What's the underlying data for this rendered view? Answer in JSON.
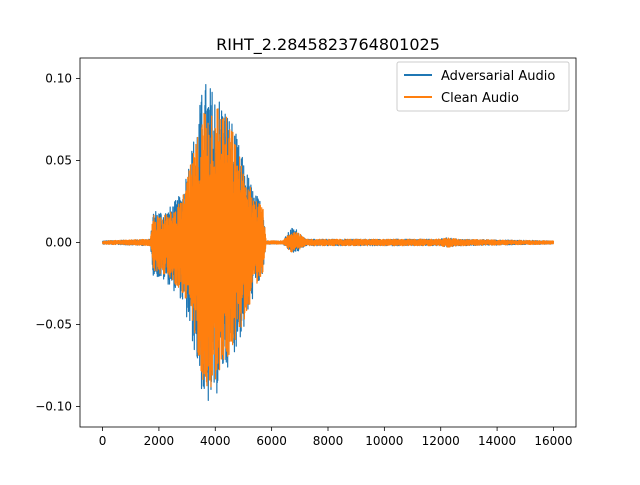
{
  "chart_data": {
    "type": "line",
    "title": "RIHT_2.2845823764801025",
    "xlabel": "",
    "ylabel": "",
    "xlim": [
      -800,
      16800
    ],
    "ylim": [
      -0.1125,
      0.1125
    ],
    "x_ticks": [
      0,
      2000,
      4000,
      6000,
      8000,
      10000,
      12000,
      14000,
      16000
    ],
    "x_tick_labels": [
      "0",
      "2000",
      "4000",
      "6000",
      "8000",
      "10000",
      "12000",
      "14000",
      "16000"
    ],
    "y_ticks": [
      0.1,
      0.05,
      0.0,
      -0.05,
      -0.1
    ],
    "y_tick_labels": [
      "0.10",
      "0.05",
      "0.00",
      "−0.05",
      "−0.10"
    ],
    "grid": false,
    "legend_position": "top-right",
    "series": [
      {
        "name": "Adversarial Audio",
        "color": "#1f77b4",
        "envelope_x": [
          0,
          1700,
          1800,
          2300,
          2800,
          3300,
          3600,
          3900,
          4200,
          4600,
          5000,
          5400,
          5700,
          5800,
          6400,
          6700,
          6900,
          7200,
          8000,
          11900,
          12300,
          12600,
          16000
        ],
        "envelope_max": [
          0.001,
          0.002,
          0.02,
          0.02,
          0.03,
          0.07,
          0.1,
          0.095,
          0.09,
          0.075,
          0.05,
          0.03,
          0.025,
          0.001,
          0.001,
          0.009,
          0.008,
          0.002,
          0.002,
          0.002,
          0.003,
          0.002,
          0.001
        ],
        "envelope_min": [
          -0.001,
          -0.002,
          -0.02,
          -0.025,
          -0.035,
          -0.07,
          -0.1,
          -0.102,
          -0.085,
          -0.07,
          -0.055,
          -0.03,
          -0.02,
          -0.001,
          -0.001,
          -0.006,
          -0.006,
          -0.002,
          -0.002,
          -0.002,
          -0.003,
          -0.002,
          -0.001
        ]
      },
      {
        "name": "Clean Audio",
        "color": "#ff7f0e",
        "envelope_x": [
          0,
          1700,
          1800,
          2300,
          2800,
          3300,
          3600,
          3900,
          4200,
          4600,
          5000,
          5400,
          5700,
          5800,
          6400,
          6700,
          6900,
          7200,
          8000,
          11900,
          12300,
          12600,
          16000
        ],
        "envelope_max": [
          0.001,
          0.002,
          0.018,
          0.017,
          0.025,
          0.06,
          0.085,
          0.09,
          0.085,
          0.07,
          0.045,
          0.028,
          0.022,
          0.001,
          0.001,
          0.008,
          0.007,
          0.002,
          0.002,
          0.002,
          0.003,
          0.002,
          0.001
        ],
        "envelope_min": [
          -0.001,
          -0.002,
          -0.018,
          -0.02,
          -0.03,
          -0.06,
          -0.088,
          -0.09,
          -0.08,
          -0.065,
          -0.05,
          -0.028,
          -0.018,
          -0.001,
          -0.001,
          -0.006,
          -0.005,
          -0.002,
          -0.002,
          -0.002,
          -0.003,
          -0.002,
          -0.001
        ]
      }
    ]
  }
}
